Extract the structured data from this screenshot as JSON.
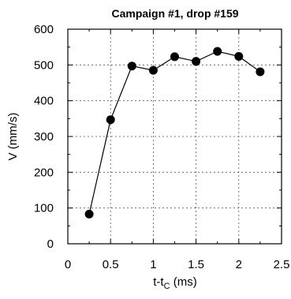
{
  "chart_data": {
    "type": "scatter",
    "title": "Campaign #1, drop #159",
    "xlabel_main": "t-t",
    "xlabel_sub": "C",
    "xlabel_unit": " (ms)",
    "ylabel": "V (mm/s)",
    "xlim": [
      0,
      2.5
    ],
    "ylim": [
      0,
      600
    ],
    "x_ticks": [
      0,
      0.5,
      1,
      1.5,
      2,
      2.5
    ],
    "x_tick_labels": [
      "0",
      "0.5",
      "1",
      "1.5",
      "2",
      "2.5"
    ],
    "y_ticks": [
      0,
      100,
      200,
      300,
      400,
      500,
      600
    ],
    "y_tick_labels": [
      "0",
      "100",
      "200",
      "300",
      "400",
      "500",
      "600"
    ],
    "grid": true,
    "legend": false,
    "series": [
      {
        "x": [
          0.25,
          0.5,
          0.75,
          1.0,
          1.25,
          1.5,
          1.75,
          2.0,
          2.25
        ],
        "y": [
          83,
          347,
          497,
          485,
          523,
          510,
          538,
          524,
          481
        ],
        "color": "#000000"
      }
    ]
  }
}
